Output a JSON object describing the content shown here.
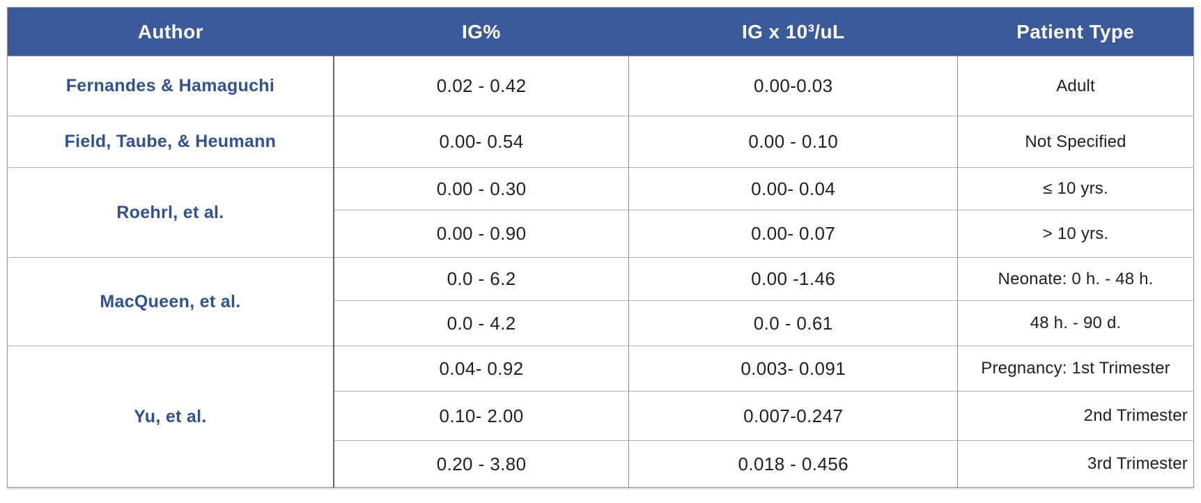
{
  "table": {
    "columns": [
      {
        "label": "Author"
      },
      {
        "label": "IG%"
      },
      {
        "label": "IG x 10³/uL"
      },
      {
        "label": "Patient Type"
      }
    ],
    "groups": [
      {
        "author": "Fernandes & Hamaguchi",
        "rows": [
          {
            "ig_pct": "0.02 - 0.42",
            "ig_abs": "0.00-0.03",
            "patient": "Adult"
          }
        ]
      },
      {
        "author": "Field, Taube, & Heumann",
        "rows": [
          {
            "ig_pct": "0.00- 0.54",
            "ig_abs": "0.00 - 0.10",
            "patient": "Not Specified"
          }
        ]
      },
      {
        "author": "Roehrl, et al.",
        "rows": [
          {
            "ig_pct": "0.00 - 0.30",
            "ig_abs": "0.00- 0.04",
            "patient": "≤ 10 yrs."
          },
          {
            "ig_pct": "0.00 - 0.90",
            "ig_abs": "0.00- 0.07",
            "patient": "> 10 yrs."
          }
        ]
      },
      {
        "author": "MacQueen, et al.",
        "rows": [
          {
            "ig_pct": "0.0 - 6.2",
            "ig_abs": "0.00 -1.46",
            "patient": "Neonate: 0 h. - 48 h."
          },
          {
            "ig_pct": "0.0 - 4.2",
            "ig_abs": "0.0 - 0.61",
            "patient": "48 h. - 90 d."
          }
        ]
      },
      {
        "author": "Yu, et al.",
        "rows": [
          {
            "ig_pct": "0.04- 0.92",
            "ig_abs": "0.003- 0.091",
            "patient": "Pregnancy: 1st Trimester"
          },
          {
            "ig_pct": "0.10- 2.00",
            "ig_abs": "0.007-0.247",
            "patient": "2nd Trimester",
            "patient_align": "right"
          },
          {
            "ig_pct": "0.20 - 3.80",
            "ig_abs": "0.018 - 0.456",
            "patient": "3rd Trimester",
            "patient_align": "right"
          }
        ]
      }
    ],
    "colors": {
      "header_bg": "#3b5a99",
      "header_text": "#ffffff",
      "author_text": "#2e5095",
      "body_text": "#1f1f1f",
      "border_light": "#b3b3b3",
      "border_mid": "#8c8c8c",
      "border_dark": "#666666",
      "outer_border": "#979797"
    }
  }
}
